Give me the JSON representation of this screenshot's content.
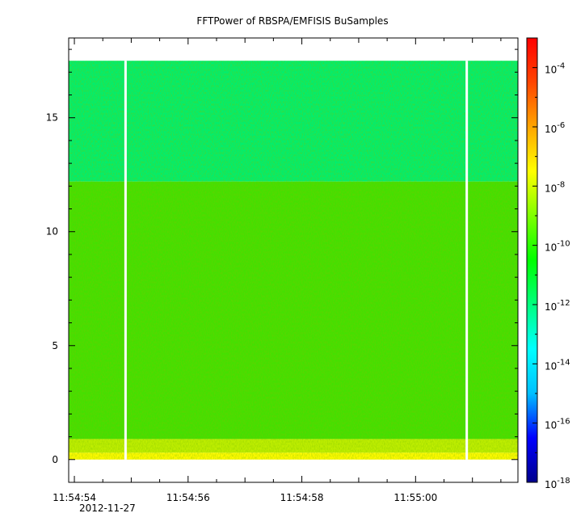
{
  "chart_data": {
    "type": "heatmap",
    "title": "FFTPower of RBSPA/EMFISIS  BuSamples",
    "xlabel": "",
    "ylabel": "",
    "x_date": "2012-11-27",
    "xlim": [
      "11:54:53.9",
      "11:55:01.8"
    ],
    "ylim": [
      -1.0,
      18.5
    ],
    "x_ticks": [
      "11:54:54",
      "11:54:56",
      "11:54:58",
      "11:55:00"
    ],
    "y_ticks": [
      0,
      5,
      10,
      15
    ],
    "colorbar": {
      "scale": "log",
      "range": [
        1e-18,
        0.001
      ],
      "tick_labels": [
        {
          "base": "10",
          "exp": "-4",
          "value": 0.0001
        },
        {
          "base": "10",
          "exp": "-6",
          "value": 1e-06
        },
        {
          "base": "10",
          "exp": "-8",
          "value": 1e-08
        },
        {
          "base": "10",
          "exp": "-10",
          "value": 1e-10
        },
        {
          "base": "10",
          "exp": "-12",
          "value": 1e-12
        },
        {
          "base": "10",
          "exp": "-14",
          "value": 1e-14
        },
        {
          "base": "10",
          "exp": "-16",
          "value": 1e-16
        },
        {
          "base": "10",
          "exp": "-18",
          "value": 1e-18
        }
      ],
      "colormap": [
        "#00008b",
        "#0000ff",
        "#00bfff",
        "#00ffff",
        "#00ff7f",
        "#00ff00",
        "#7fff00",
        "#ffff00",
        "#ffa500",
        "#ff4500",
        "#ff0000"
      ]
    },
    "data_gaps_x": [
      "11:54:54.9",
      "11:55:00.9"
    ],
    "bands": [
      {
        "y_range": [
          12.2,
          17.5
        ],
        "typical_power": 3e-12,
        "color": "#00ee6e"
      },
      {
        "y_range": [
          0.9,
          12.2
        ],
        "typical_power": 3e-10,
        "color": "#44e000"
      },
      {
        "y_range": [
          0.3,
          0.9
        ],
        "typical_power": 3e-09,
        "color": "#bfee00"
      },
      {
        "y_range": [
          0.0,
          0.3
        ],
        "typical_power": 1e-08,
        "color": "#fffa00"
      }
    ],
    "data_extent_y": [
      0.0,
      17.5
    ],
    "grid": false
  }
}
